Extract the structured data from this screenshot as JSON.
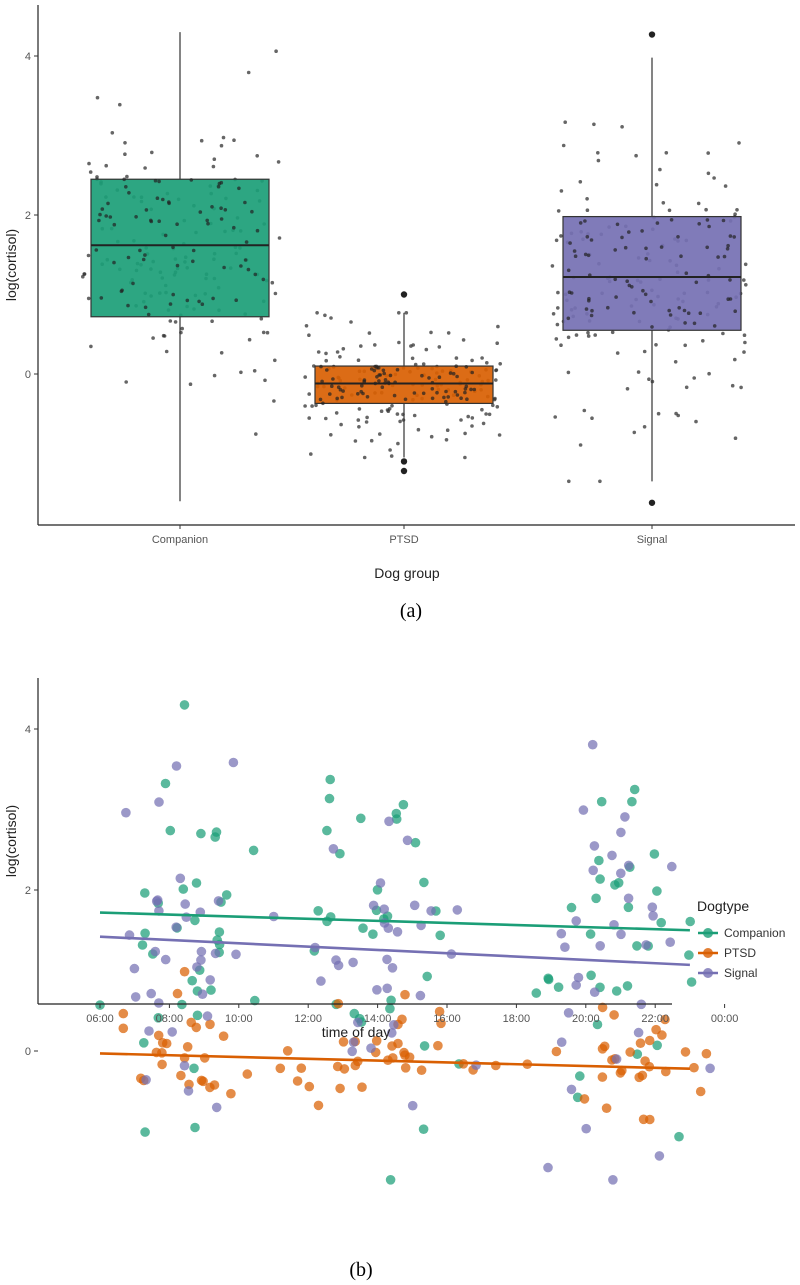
{
  "chart_data": [
    {
      "type": "box",
      "caption": "(a)",
      "xlabel": "Dog group",
      "ylabel": "log(cortisol)",
      "ylim": [
        -1.95,
        4.35
      ],
      "yticks": [
        0,
        2,
        4
      ],
      "categories": [
        "Companion",
        "PTSD",
        "Signal"
      ],
      "colors": [
        "#1b9e77",
        "#d95f02",
        "#7570b3"
      ],
      "boxes": [
        {
          "name": "Companion",
          "q1": 0.72,
          "median": 1.62,
          "q3": 2.45,
          "whisker_low": -1.6,
          "whisker_high": 4.3,
          "outliers": []
        },
        {
          "name": "PTSD",
          "q1": -0.37,
          "median": -0.12,
          "q3": 0.1,
          "whisker_low": -1.05,
          "whisker_high": 0.77,
          "outliers": [
            1.0,
            -1.1,
            -1.22
          ]
        },
        {
          "name": "Signal",
          "q1": 0.55,
          "median": 1.22,
          "q3": 1.98,
          "whisker_low": -1.35,
          "whisker_high": 3.98,
          "outliers": [
            4.27,
            -1.62
          ]
        }
      ]
    },
    {
      "type": "scatter",
      "caption": "(b)",
      "xlabel": "time of day",
      "ylabel": "log(cortisol)",
      "ylim": [
        -1.95,
        4.35
      ],
      "yticks": [
        0,
        2,
        4
      ],
      "xticks": [
        "06:00",
        "08:00",
        "10:00",
        "12:00",
        "14:00",
        "16:00",
        "18:00",
        "20:00",
        "22:00",
        "00:00"
      ],
      "xlim": [
        "05:10",
        "00:30"
      ],
      "legend_title": "Dogtype",
      "legend_position": "right",
      "series": [
        {
          "name": "Companion",
          "color": "#1b9e77",
          "trend": {
            "x": [
              "06:00",
              "23:00"
            ],
            "y": [
              1.72,
              1.5
            ]
          }
        },
        {
          "name": "PTSD",
          "color": "#d95f02",
          "trend": {
            "x": [
              "06:00",
              "23:00"
            ],
            "y": [
              -0.03,
              -0.22
            ]
          }
        },
        {
          "name": "Signal",
          "color": "#7570b3",
          "trend": {
            "x": [
              "06:00",
              "23:00"
            ],
            "y": [
              1.42,
              1.07
            ]
          }
        }
      ]
    }
  ]
}
